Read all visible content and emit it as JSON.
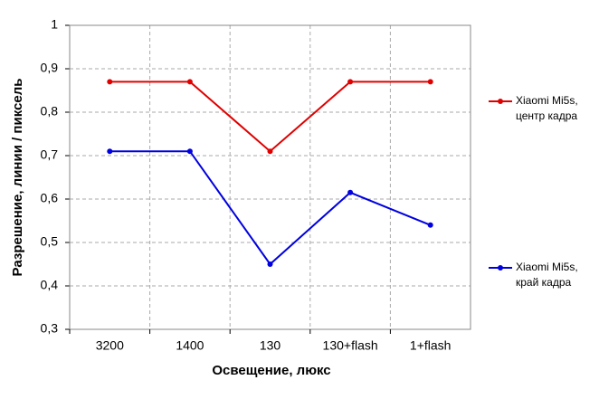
{
  "chart_data": {
    "type": "line",
    "x_label": "Освещение,  люкс",
    "y_label": "Разрешение,  линии  / пиксель",
    "categories": [
      "3200",
      "1400",
      "130",
      "130+flash",
      "1+flash"
    ],
    "series": [
      {
        "name": "Xiaomi Mi5s, центр кадра",
        "color": "#e00000",
        "values": [
          0.87,
          0.87,
          0.71,
          0.87,
          0.87
        ]
      },
      {
        "name": "Xiaomi Mi5s, край кадра",
        "color": "#0000e0",
        "values": [
          0.71,
          0.71,
          0.45,
          0.615,
          0.54
        ]
      }
    ],
    "ylim": [
      0.3,
      1
    ],
    "yticks": [
      {
        "value": 0.3,
        "label": "0,3"
      },
      {
        "value": 0.4,
        "label": "0,4"
      },
      {
        "value": 0.5,
        "label": "0,5"
      },
      {
        "value": 0.6,
        "label": "0,6"
      },
      {
        "value": 0.7,
        "label": "0,7"
      },
      {
        "value": 0.8,
        "label": "0,8"
      },
      {
        "value": 0.9,
        "label": "0,9"
      },
      1
    ],
    "grid": true
  }
}
